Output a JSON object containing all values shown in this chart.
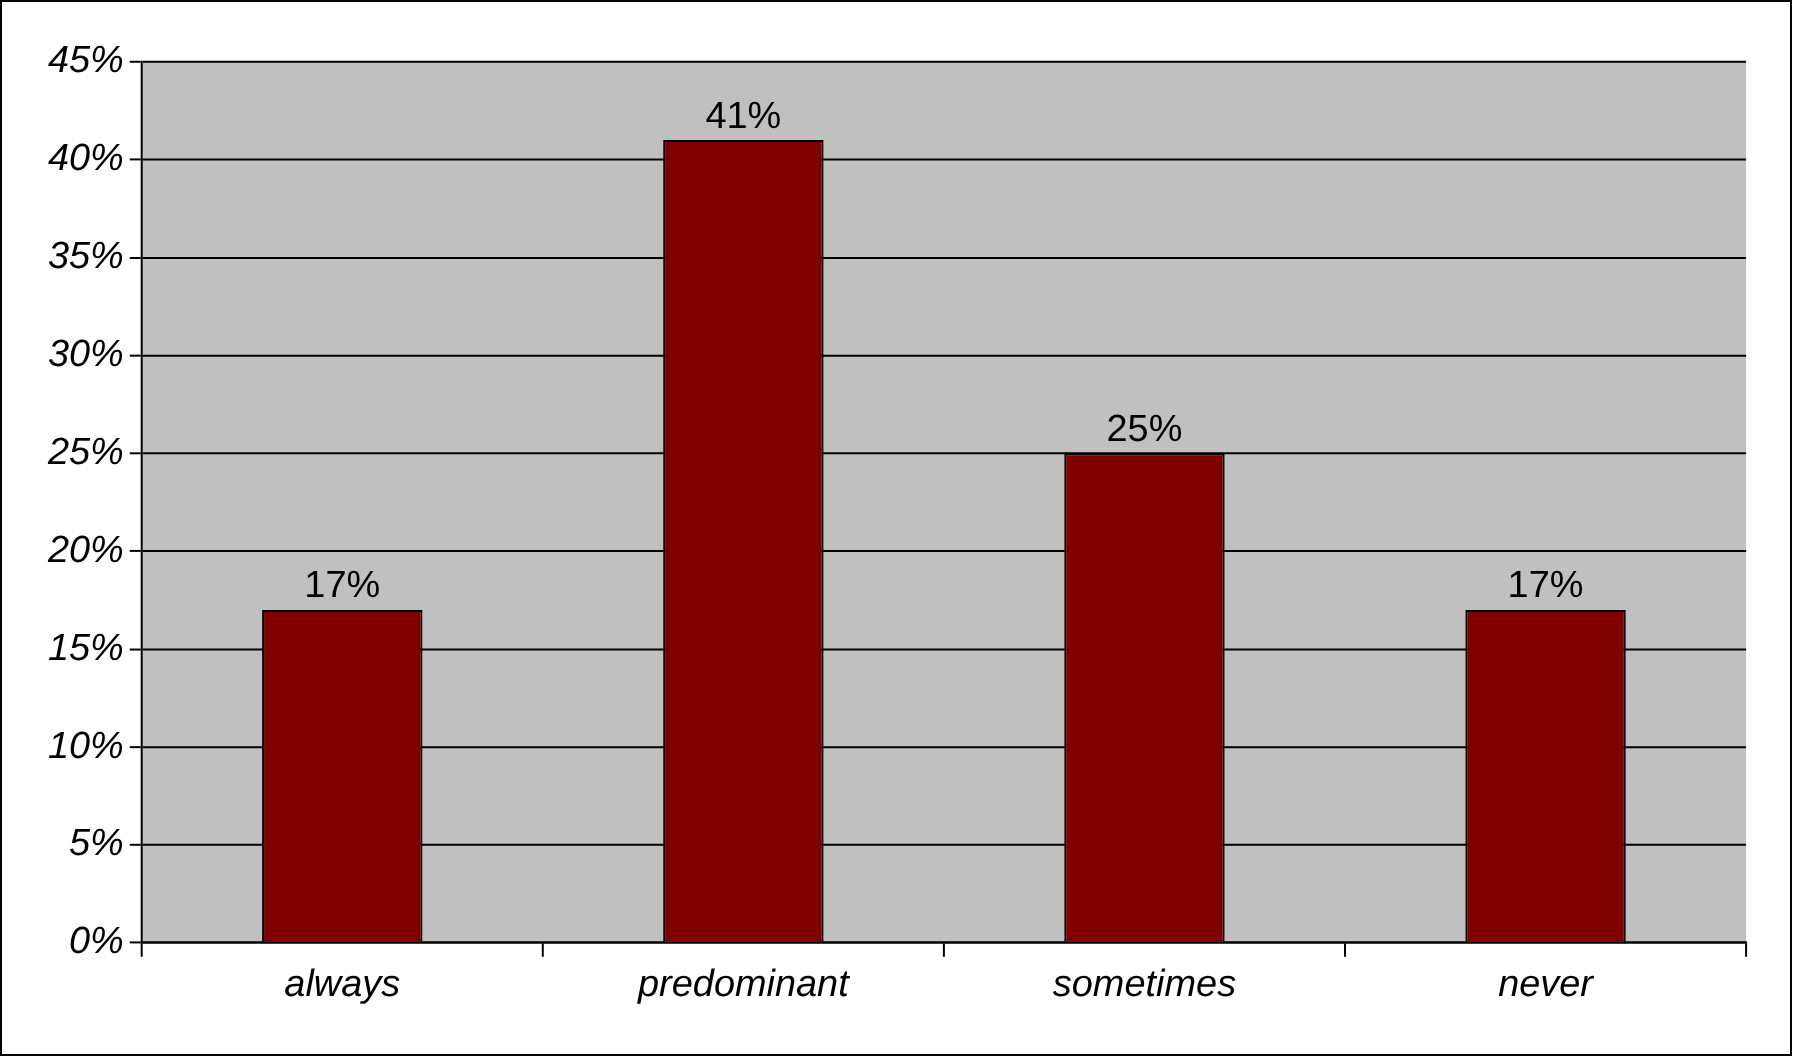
{
  "chart_data": {
    "type": "bar",
    "categories": [
      "always",
      "predominant",
      "sometimes",
      "never"
    ],
    "values": [
      17,
      41,
      25,
      17
    ],
    "value_labels": [
      "17%",
      "41%",
      "25%",
      "17%"
    ],
    "color": "#800000",
    "ylim": [
      0,
      45
    ],
    "yticks": [
      {
        "value": 0,
        "label": "0%"
      },
      {
        "value": 5,
        "label": "5%"
      },
      {
        "value": 10,
        "label": "10%"
      },
      {
        "value": 15,
        "label": "15%"
      },
      {
        "value": 20,
        "label": "20%"
      },
      {
        "value": 25,
        "label": "25%"
      },
      {
        "value": 30,
        "label": "30%"
      },
      {
        "value": 35,
        "label": "35%"
      },
      {
        "value": 40,
        "label": "40%"
      },
      {
        "value": 45,
        "label": "45%"
      }
    ],
    "grid": "y"
  }
}
